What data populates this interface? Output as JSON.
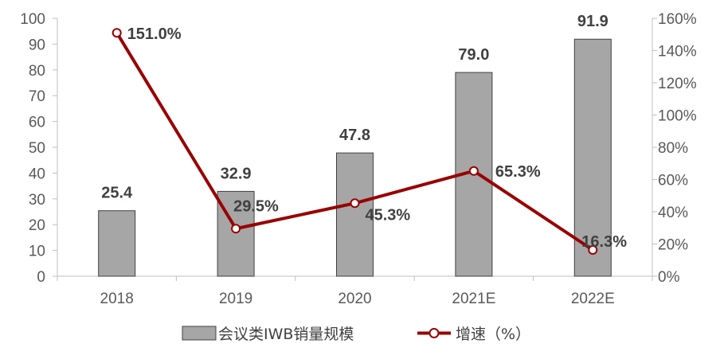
{
  "chart_data": {
    "type": "bar+line",
    "categories": [
      "2018",
      "2019",
      "2020",
      "2021E",
      "2022E"
    ],
    "series": [
      {
        "name": "会议类IWB销量规模",
        "type": "bar",
        "axis": "left",
        "values": [
          25.4,
          32.9,
          47.8,
          79.0,
          91.9
        ],
        "labels": [
          "25.4",
          "32.9",
          "47.8",
          "79.0",
          "91.9"
        ],
        "color": "#a6a6a6"
      },
      {
        "name": "增速（%）",
        "type": "line",
        "axis": "right",
        "values": [
          151.0,
          29.5,
          45.3,
          65.3,
          16.3
        ],
        "labels": [
          "151.0%",
          "29.5%",
          "45.3%",
          "65.3%",
          "16.3%"
        ],
        "color": "#990000"
      }
    ],
    "y_left": {
      "min": 0,
      "max": 100,
      "step": 10,
      "ticks": [
        "0",
        "10",
        "20",
        "30",
        "40",
        "50",
        "60",
        "70",
        "80",
        "90",
        "100"
      ]
    },
    "y_right": {
      "min": 0,
      "max": 160,
      "step": 20,
      "ticks": [
        "0%",
        "20%",
        "40%",
        "60%",
        "80%",
        "100%",
        "120%",
        "140%",
        "160%"
      ]
    },
    "grid": false,
    "legend": {
      "placement": "bottom-center",
      "items": [
        {
          "label": "会议类IWB销量规模",
          "symbol": "bar"
        },
        {
          "label": "增速（%）",
          "symbol": "line-marker"
        }
      ]
    }
  }
}
